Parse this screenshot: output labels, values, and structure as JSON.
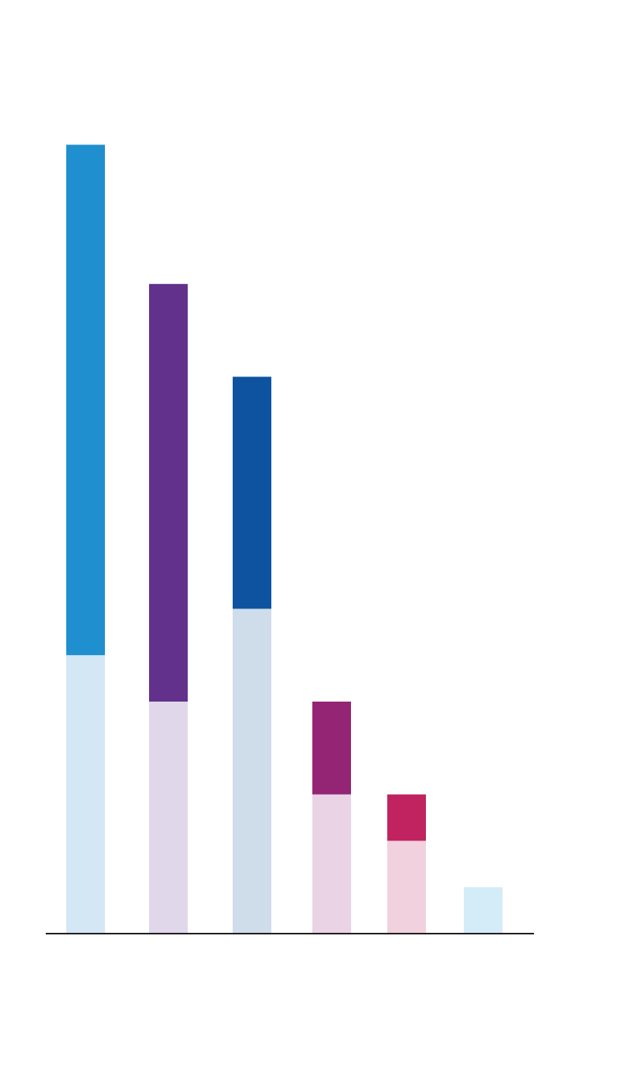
{
  "chart_data": {
    "type": "bar",
    "stacked": true,
    "categories": [
      "",
      "",
      "",
      "",
      "",
      ""
    ],
    "series": [
      {
        "values": [
          6,
          5,
          7,
          3,
          2,
          1
        ],
        "colors": [
          "#d3e7f5",
          "#e0d7ea",
          "#cfdcea",
          "#e9d3e5",
          "#f2d1df",
          "#d3ecf7"
        ]
      },
      {
        "values": [
          11,
          9,
          5,
          2,
          1,
          0
        ],
        "colors": [
          "#1f8fcf",
          "#62318b",
          "#0e53a0",
          "#932574",
          "#c0235f",
          "#d3ecf7"
        ]
      }
    ],
    "ylim": [
      0,
      17
    ],
    "grid": false,
    "legend": "none",
    "title": "",
    "xlabel": "",
    "ylabel": ""
  }
}
